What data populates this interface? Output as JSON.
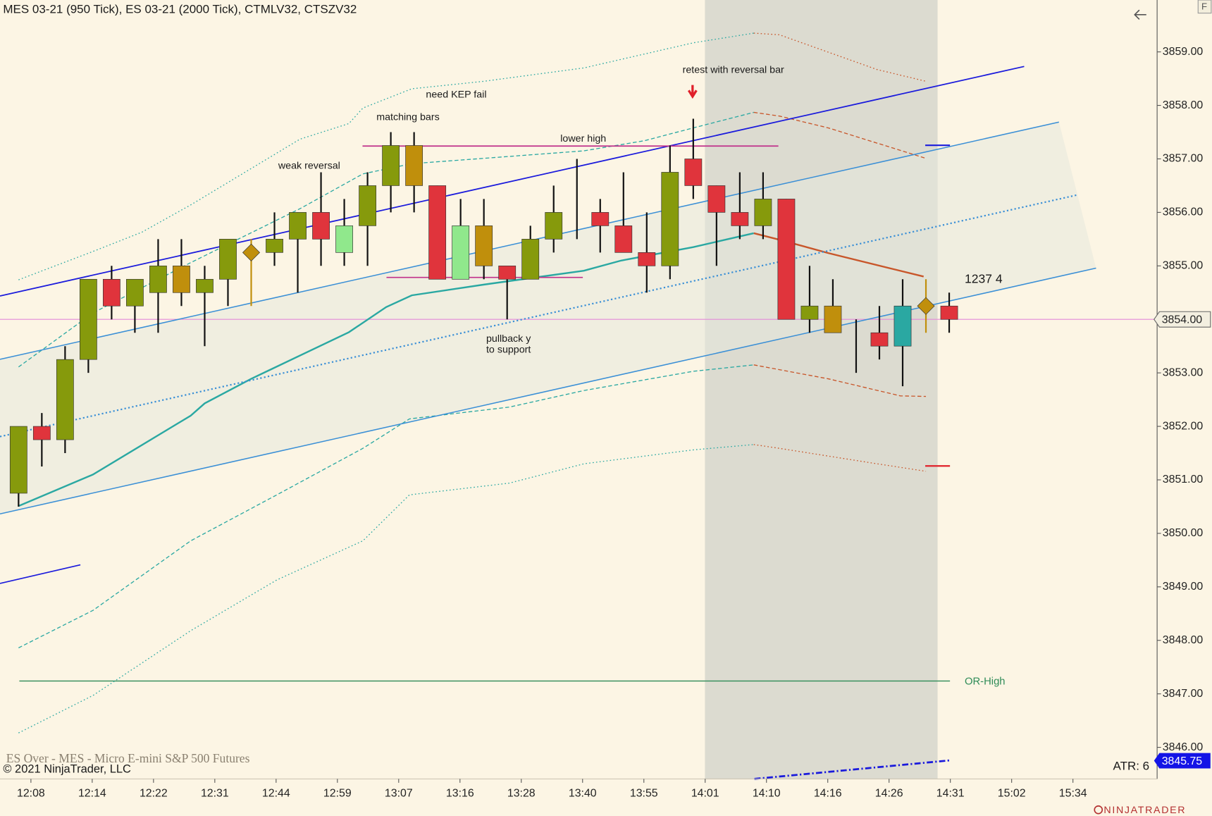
{
  "chart_data": {
    "type": "candlestick",
    "title": "MES 03-21 (950 Tick), ES 03-21 (2000 Tick), CTMLV32, CTSZV32",
    "ylim": [
      3845.41,
      3859.97
    ],
    "yticks": [
      {
        "value": 3846,
        "label": "3846.00"
      },
      {
        "value": 3847,
        "label": "3847.00"
      },
      {
        "value": 3848,
        "label": "3848.00"
      },
      {
        "value": 3849,
        "label": "3849.00"
      },
      {
        "value": 3850,
        "label": "3850.00"
      },
      {
        "value": 3851,
        "label": "3851.00"
      },
      {
        "value": 3852,
        "label": "3852.00"
      },
      {
        "value": 3853,
        "label": "3853.00"
      },
      {
        "value": 3854,
        "label": "3854.00"
      },
      {
        "value": 3855,
        "label": "3855.00"
      },
      {
        "value": 3856,
        "label": "3856.00"
      },
      {
        "value": 3857,
        "label": "3857.00"
      },
      {
        "value": 3858,
        "label": "3858.00"
      },
      {
        "value": 3859,
        "label": "3859.00"
      }
    ],
    "x_labels": [
      "12:08",
      "12:14",
      "12:22",
      "12:31",
      "12:44",
      "12:59",
      "13:07",
      "13:16",
      "13:28",
      "13:40",
      "13:55",
      "14:01",
      "14:10",
      "14:16",
      "14:26",
      "14:31",
      "15:02",
      "15:34"
    ],
    "wick_color": "#111111",
    "candles": [
      {
        "open": 3850.75,
        "high": 3852.0,
        "low": 3850.5,
        "close": 3852.0,
        "color": "#869a0c"
      },
      {
        "open": 3852.0,
        "high": 3852.25,
        "low": 3851.25,
        "close": 3851.75,
        "color": "#e0343c"
      },
      {
        "open": 3851.75,
        "high": 3853.5,
        "low": 3851.5,
        "close": 3853.25,
        "color": "#869a0c"
      },
      {
        "open": 3853.25,
        "high": 3854.75,
        "low": 3853.0,
        "close": 3854.75,
        "color": "#869a0c"
      },
      {
        "open": 3854.75,
        "high": 3855.0,
        "low": 3854.0,
        "close": 3854.25,
        "color": "#e0343c"
      },
      {
        "open": 3854.25,
        "high": 3854.75,
        "low": 3853.75,
        "close": 3854.75,
        "color": "#869a0c"
      },
      {
        "open": 3854.5,
        "high": 3855.5,
        "low": 3853.75,
        "close": 3855.0,
        "color": "#869a0c"
      },
      {
        "open": 3855.0,
        "high": 3855.5,
        "low": 3854.25,
        "close": 3854.5,
        "color": "#c08f0c"
      },
      {
        "open": 3854.5,
        "high": 3855.0,
        "low": 3853.5,
        "close": 3854.75,
        "color": "#869a0c"
      },
      {
        "open": 3854.75,
        "high": 3855.5,
        "low": 3854.25,
        "close": 3855.5,
        "color": "#869a0c"
      },
      {
        "open": 3855.25,
        "high": 3855.5,
        "low": 3854.25,
        "close": 3855.25,
        "color": "#c08f0c"
      },
      {
        "open": 3855.25,
        "high": 3856.0,
        "low": 3855.0,
        "close": 3855.5,
        "color": "#869a0c"
      },
      {
        "open": 3855.5,
        "high": 3856.0,
        "low": 3854.5,
        "close": 3856.0,
        "color": "#869a0c"
      },
      {
        "open": 3856.0,
        "high": 3856.75,
        "low": 3855.0,
        "close": 3855.5,
        "color": "#e0343c"
      },
      {
        "open": 3855.25,
        "high": 3856.25,
        "low": 3855.0,
        "close": 3855.75,
        "color": "#90e88c"
      },
      {
        "open": 3855.75,
        "high": 3856.75,
        "low": 3855.0,
        "close": 3856.5,
        "color": "#869a0c"
      },
      {
        "open": 3856.5,
        "high": 3857.5,
        "low": 3856.0,
        "close": 3857.25,
        "color": "#869a0c"
      },
      {
        "open": 3857.25,
        "high": 3857.5,
        "low": 3856.0,
        "close": 3856.5,
        "color": "#c08f0c"
      },
      {
        "open": 3856.5,
        "high": 3856.5,
        "low": 3854.75,
        "close": 3854.75,
        "color": "#e0343c"
      },
      {
        "open": 3854.75,
        "high": 3856.25,
        "low": 3854.75,
        "close": 3855.75,
        "color": "#90e88c"
      },
      {
        "open": 3855.75,
        "high": 3856.25,
        "low": 3854.75,
        "close": 3855.0,
        "color": "#c08f0c"
      },
      {
        "open": 3855.0,
        "high": 3855.0,
        "low": 3854.0,
        "close": 3854.75,
        "color": "#e0343c"
      },
      {
        "open": 3854.75,
        "high": 3855.75,
        "low": 3854.75,
        "close": 3855.5,
        "color": "#869a0c"
      },
      {
        "open": 3855.5,
        "high": 3856.5,
        "low": 3855.25,
        "close": 3856.0,
        "color": "#869a0c"
      },
      {
        "open": 3855.75,
        "high": 3857.0,
        "low": 3855.5,
        "close": 3855.75,
        "color": "#111111"
      },
      {
        "open": 3856.0,
        "high": 3856.25,
        "low": 3855.25,
        "close": 3855.75,
        "color": "#e0343c"
      },
      {
        "open": 3855.75,
        "high": 3856.75,
        "low": 3855.25,
        "close": 3855.25,
        "color": "#e0343c"
      },
      {
        "open": 3855.25,
        "high": 3856.0,
        "low": 3854.5,
        "close": 3855.0,
        "color": "#e0343c"
      },
      {
        "open": 3855.0,
        "high": 3857.25,
        "low": 3854.75,
        "close": 3856.75,
        "color": "#869a0c"
      },
      {
        "open": 3857.0,
        "high": 3857.75,
        "low": 3856.25,
        "close": 3856.5,
        "color": "#e0343c"
      },
      {
        "open": 3856.5,
        "high": 3856.5,
        "low": 3855.0,
        "close": 3856.0,
        "color": "#e0343c"
      },
      {
        "open": 3856.0,
        "high": 3856.75,
        "low": 3855.5,
        "close": 3855.75,
        "color": "#e0343c"
      },
      {
        "open": 3855.75,
        "high": 3856.75,
        "low": 3855.5,
        "close": 3856.25,
        "color": "#869a0c"
      },
      {
        "open": 3856.25,
        "high": 3856.25,
        "low": 3854.0,
        "close": 3854.0,
        "color": "#e0343c"
      },
      {
        "open": 3854.0,
        "high": 3855.0,
        "low": 3853.75,
        "close": 3854.25,
        "color": "#869a0c"
      },
      {
        "open": 3854.25,
        "high": 3854.75,
        "low": 3853.75,
        "close": 3853.75,
        "color": "#c08f0c"
      },
      {
        "open": 3853.75,
        "high": 3854.0,
        "low": 3853.0,
        "close": 3853.75,
        "color": "#111111"
      },
      {
        "open": 3853.75,
        "high": 3854.25,
        "low": 3853.25,
        "close": 3853.5,
        "color": "#e0343c"
      },
      {
        "open": 3853.5,
        "high": 3854.75,
        "low": 3852.75,
        "close": 3854.25,
        "color": "#2aa8a2"
      },
      {
        "open": 3854.25,
        "high": 3854.75,
        "low": 3853.75,
        "close": 3854.25,
        "color": "#c08f0c"
      },
      {
        "open": 3854.25,
        "high": 3854.5,
        "low": 3853.75,
        "close": 3854.0,
        "color": "#e0343c"
      }
    ],
    "lines": [
      {
        "color": "#2aa8a2",
        "style": "solid",
        "x": [
          0,
          3.2,
          7.4,
          8,
          10,
          14.2,
          15.8,
          16.9,
          20,
          24.3,
          25.9,
          29,
          31.6
        ],
        "values": [
          3850.51,
          3851.1,
          3852.2,
          3852.43,
          3852.89,
          3853.76,
          3854.23,
          3854.45,
          3854.65,
          3854.91,
          3855.1,
          3855.35,
          3855.61
        ]
      },
      {
        "color": "#c8562a",
        "style": "solid",
        "x": [
          31.6,
          32.7,
          34.8,
          38.9
        ],
        "values": [
          3855.61,
          3855.49,
          3855.24,
          3854.8
        ]
      },
      {
        "color": "#2aa8a2",
        "style": "dashed",
        "x": [
          0,
          3.2,
          7.4,
          12.1,
          14.8,
          16.9,
          20,
          24.3,
          26.9,
          29,
          31.6
        ],
        "values": [
          3853.11,
          3854.12,
          3855.06,
          3856.07,
          3856.72,
          3856.91,
          3857.01,
          3857.15,
          3857.34,
          3857.58,
          3857.87
        ]
      },
      {
        "color": "#c8562a",
        "style": "dashed",
        "x": [
          31.6,
          32.7,
          34.8,
          39
        ],
        "values": [
          3857.87,
          3857.8,
          3857.58,
          3857.01
        ]
      },
      {
        "color": "#2aa8a2",
        "style": "dotted",
        "x": [
          0,
          3.2,
          5.3,
          7.4,
          12.1,
          14.2,
          14.8,
          16.9,
          20,
          24.3,
          29,
          31.6
        ],
        "values": [
          3854.74,
          3855.27,
          3855.63,
          3856.14,
          3857.37,
          3857.66,
          3857.95,
          3858.31,
          3858.45,
          3858.7,
          3859.17,
          3859.35
        ]
      },
      {
        "color": "#c8562a",
        "style": "dotted",
        "x": [
          31.6,
          32.7,
          36.9,
          39
        ],
        "values": [
          3859.35,
          3859.32,
          3858.67,
          3858.45
        ]
      },
      {
        "color": "#2aa8a2",
        "style": "dashed",
        "x": [
          0,
          3.2,
          7.4,
          11.1,
          14.8,
          16.8,
          21.1,
          24.3,
          29,
          31.6
        ],
        "values": [
          3847.86,
          3848.56,
          3849.86,
          3850.72,
          3851.59,
          3852.14,
          3852.36,
          3852.67,
          3853.03,
          3853.15
        ]
      },
      {
        "color": "#c8562a",
        "style": "dashed",
        "x": [
          31.6,
          32.7,
          34.8,
          37.9,
          39
        ],
        "values": [
          3853.15,
          3853.06,
          3852.89,
          3852.57,
          3852.56
        ]
      },
      {
        "color": "#2aa8a2",
        "style": "dotted",
        "x": [
          0,
          3.2,
          7.4,
          11.1,
          14.8,
          16.8,
          21.1,
          24.3,
          29,
          31.6
        ],
        "values": [
          3846.27,
          3846.97,
          3848.18,
          3849.13,
          3849.86,
          3850.72,
          3850.94,
          3851.3,
          3851.56,
          3851.66
        ]
      },
      {
        "color": "#c8562a",
        "style": "dotted",
        "x": [
          31.6,
          32.7,
          36.9,
          39
        ],
        "values": [
          3851.66,
          3851.59,
          3851.3,
          3851.16
        ]
      }
    ],
    "or_high": {
      "value": 3847.24,
      "label": "OR-High"
    },
    "last_price": {
      "value": 3854,
      "label": "3854.00"
    },
    "marker_price": {
      "value": 3845.75,
      "label": "3845.75"
    },
    "annotations": [
      "weak reversal",
      "matching bars",
      "need KEP fail",
      "lower high",
      "retest with reversal bar",
      "pullback y",
      "to support",
      "1237  4"
    ],
    "atr": "ATR: 6",
    "instrument_note": "ES Over  - MES - Micro E-mini S&P 500 Futures",
    "copyright": "© 2021 NinjaTrader, LLC",
    "logo": "NINJATRADER",
    "corner_button": "F"
  }
}
